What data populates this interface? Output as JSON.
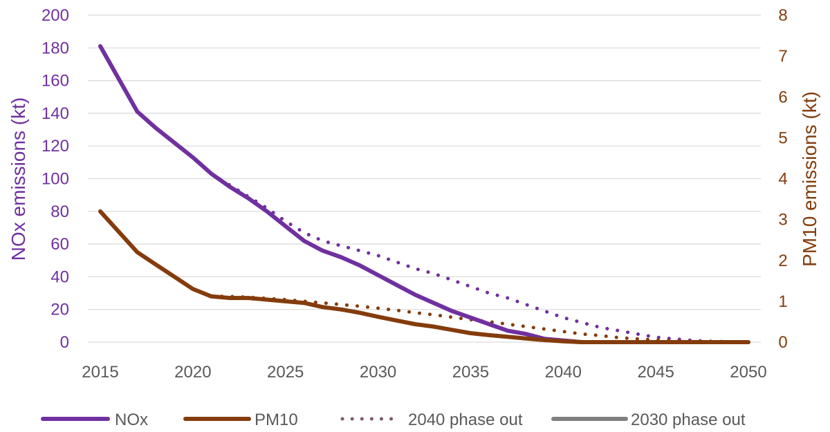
{
  "chart_data": {
    "type": "line",
    "title": "",
    "xlabel": "",
    "ylabel": "NOx emissions (kt)",
    "y2label": "PM10 emissions (kt)",
    "xlim": [
      2015,
      2050
    ],
    "ylim": [
      0,
      200
    ],
    "y2lim": [
      0,
      8
    ],
    "x_ticks": [
      2015,
      2020,
      2025,
      2030,
      2035,
      2040,
      2045,
      2050
    ],
    "y_ticks": [
      0,
      20,
      40,
      60,
      80,
      100,
      120,
      140,
      160,
      180,
      200
    ],
    "y2_ticks": [
      0,
      1,
      2,
      3,
      4,
      5,
      6,
      7,
      8
    ],
    "grid": true,
    "legend_position": "bottom",
    "colors": {
      "nox": "#7030a0",
      "pm10": "#843c0c",
      "grid": "#d9d9d9",
      "legend_2030": "#808080"
    },
    "series": [
      {
        "name": "NOx",
        "axis": "left",
        "style": "solid",
        "x": [
          2015,
          2017,
          2018,
          2019,
          2020,
          2021,
          2022,
          2023,
          2024,
          2025,
          2026,
          2027,
          2028,
          2029,
          2030,
          2031,
          2032,
          2033,
          2034,
          2035,
          2036,
          2037,
          2038,
          2039,
          2040,
          2041,
          2042,
          2043,
          2044,
          2045,
          2046,
          2047,
          2048,
          2049,
          2050
        ],
        "y": [
          181,
          141,
          131,
          122,
          113,
          103,
          95,
          88,
          80,
          71,
          62,
          56,
          52,
          47,
          41,
          35,
          29,
          24,
          19,
          15,
          11,
          7,
          5,
          2,
          1,
          0,
          0,
          0,
          0,
          0,
          0,
          0,
          0,
          0,
          0
        ]
      },
      {
        "name": "PM10",
        "axis": "right",
        "style": "solid",
        "x": [
          2015,
          2017,
          2018,
          2019,
          2020,
          2021,
          2022,
          2023,
          2024,
          2025,
          2026,
          2027,
          2028,
          2029,
          2030,
          2031,
          2032,
          2033,
          2034,
          2035,
          2036,
          2037,
          2038,
          2039,
          2040,
          2041,
          2042,
          2043,
          2044,
          2045,
          2046,
          2047,
          2048,
          2049,
          2050
        ],
        "y": [
          3.2,
          2.2,
          1.9,
          1.6,
          1.3,
          1.12,
          1.08,
          1.08,
          1.04,
          1.0,
          0.96,
          0.86,
          0.8,
          0.72,
          0.62,
          0.53,
          0.44,
          0.38,
          0.3,
          0.22,
          0.17,
          0.13,
          0.09,
          0.05,
          0.02,
          0,
          0,
          0,
          0,
          0,
          0,
          0,
          0,
          0,
          0
        ]
      },
      {
        "name": "2040 phase out",
        "axis": "left",
        "style": "dotted",
        "color": "#7030a0",
        "x": [
          2021,
          2022,
          2023,
          2024,
          2025,
          2026,
          2027,
          2028,
          2029,
          2030,
          2031,
          2032,
          2033,
          2034,
          2035,
          2036,
          2037,
          2038,
          2039,
          2040,
          2041,
          2042,
          2043,
          2044,
          2045,
          2046,
          2047,
          2048,
          2049,
          2050
        ],
        "y": [
          103,
          96,
          89,
          82,
          74,
          67,
          62,
          59,
          56,
          53,
          49,
          45,
          42,
          38,
          34,
          30,
          27,
          23,
          19,
          15,
          12,
          9,
          7,
          5,
          3,
          2,
          1,
          0.5,
          0.2,
          0
        ]
      },
      {
        "name": "2040 phase out",
        "axis": "right",
        "style": "dotted",
        "color": "#843c0c",
        "x": [
          2021,
          2022,
          2023,
          2024,
          2025,
          2026,
          2027,
          2028,
          2029,
          2030,
          2031,
          2032,
          2033,
          2034,
          2035,
          2036,
          2037,
          2038,
          2039,
          2040,
          2041,
          2042,
          2043,
          2044,
          2045,
          2046,
          2047,
          2048,
          2049,
          2050
        ],
        "y": [
          1.12,
          1.12,
          1.1,
          1.07,
          1.04,
          1.0,
          0.96,
          0.92,
          0.88,
          0.83,
          0.78,
          0.72,
          0.67,
          0.61,
          0.55,
          0.5,
          0.44,
          0.38,
          0.32,
          0.26,
          0.2,
          0.16,
          0.11,
          0.08,
          0.05,
          0.03,
          0.02,
          0.01,
          0,
          0
        ]
      }
    ],
    "legend": [
      {
        "label": "NOx",
        "color": "#7030a0",
        "style": "solid"
      },
      {
        "label": "PM10",
        "color": "#843c0c",
        "style": "solid"
      },
      {
        "label": "2040 phase out",
        "color": "#7f5a6f",
        "style": "dotted"
      },
      {
        "label": "2030 phase out",
        "color": "#808080",
        "style": "solid"
      }
    ]
  }
}
